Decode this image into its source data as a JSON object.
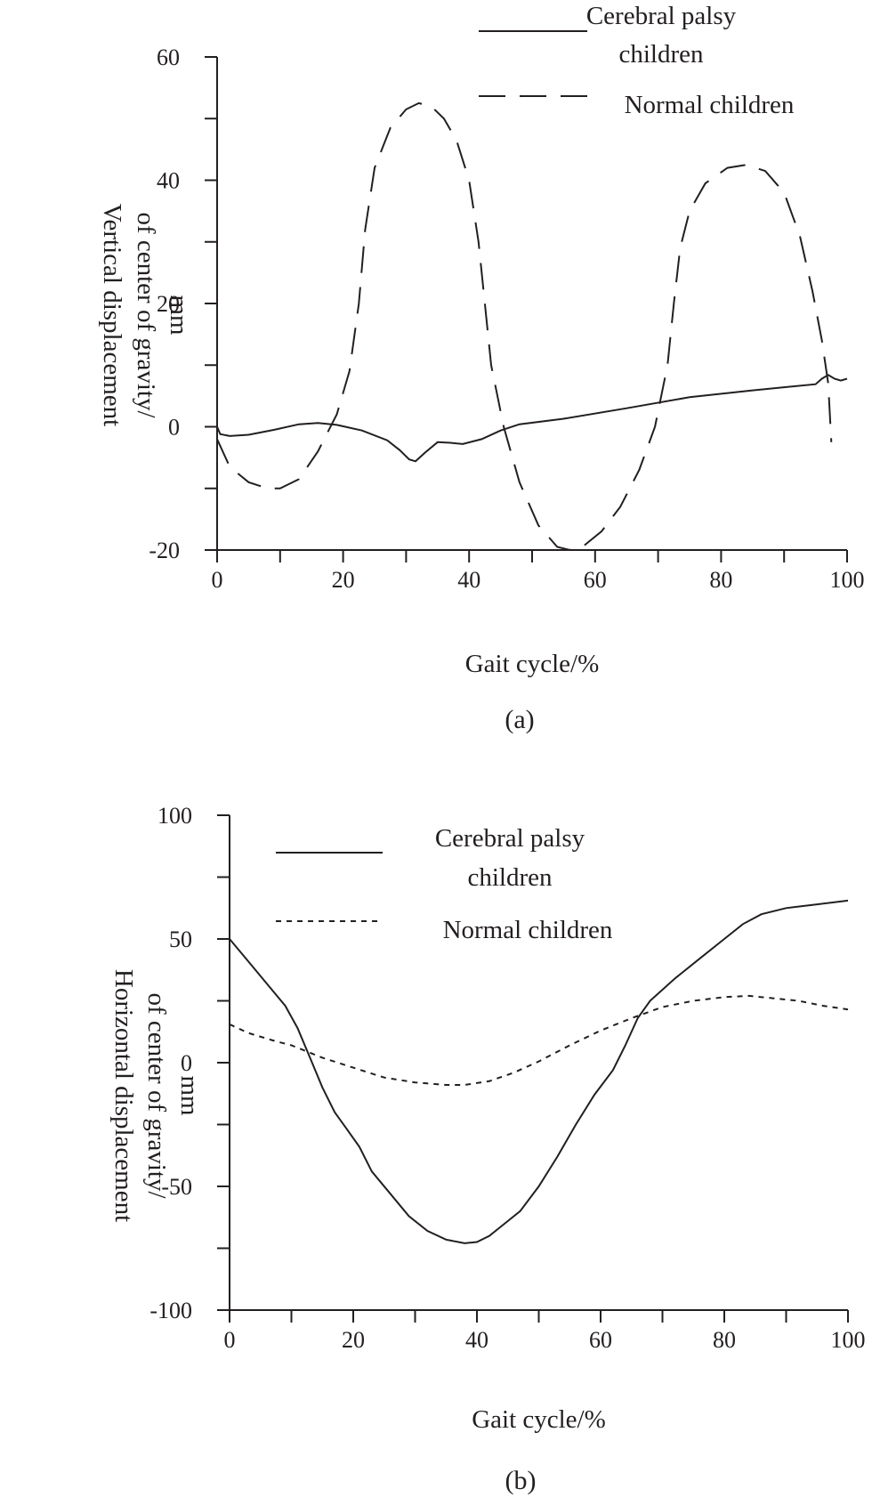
{
  "chart_data": [
    {
      "type": "line",
      "panel_label": "(a)",
      "xlabel": "Gait cycle/%",
      "ylabel_lines": [
        "Vertical displacement",
        "of center of gravity/",
        "mm"
      ],
      "xlim": [
        0,
        100
      ],
      "ylim": [
        -20,
        60
      ],
      "x_ticks": [
        0,
        20,
        40,
        60,
        80,
        100
      ],
      "y_ticks": [
        -20,
        0,
        20,
        40,
        60
      ],
      "x_tick_labels": [
        "0",
        "20",
        "40",
        "60",
        "80",
        "100"
      ],
      "y_tick_labels": [
        "-20",
        "0",
        "20",
        "40",
        "60"
      ],
      "legend_position": "top-right",
      "series": [
        {
          "name": "Cerebral palsy children",
          "legend_lines": [
            "Cerebral palsy",
            "children"
          ],
          "style": "solid",
          "points": [
            [
              0,
              0
            ],
            [
              0.5,
              -1.2
            ],
            [
              2,
              -1.5
            ],
            [
              5,
              -1.3
            ],
            [
              9,
              -0.5
            ],
            [
              13,
              0.4
            ],
            [
              16,
              0.6
            ],
            [
              19,
              0.3
            ],
            [
              23,
              -0.6
            ],
            [
              27,
              -2.2
            ],
            [
              29,
              -3.8
            ],
            [
              30.5,
              -5.3
            ],
            [
              31.5,
              -5.6
            ],
            [
              33,
              -4.2
            ],
            [
              35,
              -2.5
            ],
            [
              37,
              -2.6
            ],
            [
              39,
              -2.8
            ],
            [
              42,
              -2.0
            ],
            [
              45,
              -0.6
            ],
            [
              48,
              0.4
            ],
            [
              55,
              1.3
            ],
            [
              65,
              3.0
            ],
            [
              75,
              4.8
            ],
            [
              85,
              5.9
            ],
            [
              95,
              6.9
            ],
            [
              96,
              7.8
            ],
            [
              97,
              8.4
            ],
            [
              98,
              7.8
            ],
            [
              99,
              7.5
            ],
            [
              100,
              7.8
            ]
          ]
        },
        {
          "name": "Normal children",
          "legend_lines": [
            "Normal children"
          ],
          "style": "dashed",
          "points": [
            [
              0,
              -2
            ],
            [
              2,
              -6.5
            ],
            [
              5,
              -9
            ],
            [
              8,
              -10
            ],
            [
              10,
              -10
            ],
            [
              13,
              -8.5
            ],
            [
              16,
              -4
            ],
            [
              19,
              2
            ],
            [
              21,
              9
            ],
            [
              22.5,
              20
            ],
            [
              23.5,
              32
            ],
            [
              25,
              42
            ],
            [
              27.5,
              48.5
            ],
            [
              30,
              51.5
            ],
            [
              32,
              52.5
            ],
            [
              34,
              52
            ],
            [
              36,
              50
            ],
            [
              38,
              46.5
            ],
            [
              40,
              40
            ],
            [
              41.5,
              30
            ],
            [
              42.5,
              20
            ],
            [
              43.5,
              10
            ],
            [
              45.5,
              0
            ],
            [
              48,
              -9
            ],
            [
              51,
              -16
            ],
            [
              54,
              -19.5
            ],
            [
              56,
              -20
            ],
            [
              58,
              -19.5
            ],
            [
              61,
              -17
            ],
            [
              64,
              -13
            ],
            [
              67,
              -7
            ],
            [
              69.5,
              0
            ],
            [
              71.5,
              10
            ],
            [
              72.5,
              20
            ],
            [
              73.5,
              29
            ],
            [
              75,
              35
            ],
            [
              77.5,
              39.5
            ],
            [
              81,
              42
            ],
            [
              84,
              42.5
            ],
            [
              87,
              41.5
            ],
            [
              90,
              38
            ],
            [
              92.5,
              31
            ],
            [
              94.5,
              22
            ],
            [
              96,
              14
            ],
            [
              97,
              7
            ],
            [
              97.5,
              -2.5
            ]
          ]
        }
      ]
    },
    {
      "type": "line",
      "panel_label": "(b)",
      "xlabel": "Gait cycle/%",
      "ylabel_lines": [
        "Horizontal displacement",
        "of center of gravity/",
        "mm"
      ],
      "xlim": [
        0,
        100
      ],
      "ylim": [
        -100,
        100
      ],
      "x_ticks": [
        0,
        20,
        40,
        60,
        80,
        100
      ],
      "y_ticks": [
        -100,
        -50,
        0,
        50,
        100
      ],
      "x_tick_labels": [
        "0",
        "20",
        "40",
        "60",
        "80",
        "100"
      ],
      "y_tick_labels": [
        "-100",
        "-50",
        "0",
        "50",
        "100"
      ],
      "legend_position": "top-right",
      "series": [
        {
          "name": "Cerebral palsy children",
          "legend_lines": [
            "Cerebral palsy",
            "children"
          ],
          "style": "solid",
          "points": [
            [
              0,
              50
            ],
            [
              3,
              41
            ],
            [
              6,
              32
            ],
            [
              9,
              23
            ],
            [
              11,
              14
            ],
            [
              13,
              2
            ],
            [
              15,
              -10
            ],
            [
              17,
              -20
            ],
            [
              19,
              -27
            ],
            [
              21,
              -34
            ],
            [
              23,
              -44
            ],
            [
              26,
              -53
            ],
            [
              29,
              -62
            ],
            [
              32,
              -68
            ],
            [
              35,
              -71.5
            ],
            [
              38,
              -73
            ],
            [
              40,
              -72.5
            ],
            [
              42,
              -70
            ],
            [
              44,
              -66
            ],
            [
              47,
              -60
            ],
            [
              50,
              -50
            ],
            [
              53,
              -38
            ],
            [
              56,
              -25
            ],
            [
              59,
              -13
            ],
            [
              62,
              -3
            ],
            [
              64,
              7
            ],
            [
              66,
              18
            ],
            [
              68,
              25
            ],
            [
              72,
              34
            ],
            [
              76,
              42
            ],
            [
              80,
              50
            ],
            [
              83,
              56
            ],
            [
              86,
              60
            ],
            [
              90,
              62.5
            ],
            [
              95,
              64
            ],
            [
              100,
              65.5
            ]
          ]
        },
        {
          "name": "Normal children",
          "legend_lines": [
            "Normal children"
          ],
          "style": "dotted",
          "points": [
            [
              0,
              15.5
            ],
            [
              3,
              12
            ],
            [
              7,
              9
            ],
            [
              10,
              7
            ],
            [
              15,
              2
            ],
            [
              20,
              -2
            ],
            [
              25,
              -6
            ],
            [
              30,
              -8
            ],
            [
              35,
              -9
            ],
            [
              38,
              -9
            ],
            [
              42,
              -7.5
            ],
            [
              46,
              -4
            ],
            [
              50,
              0.5
            ],
            [
              55,
              7
            ],
            [
              60,
              13
            ],
            [
              65,
              18
            ],
            [
              70,
              22.5
            ],
            [
              75,
              25
            ],
            [
              80,
              26.5
            ],
            [
              84,
              27
            ],
            [
              88,
              26
            ],
            [
              92,
              25
            ],
            [
              96,
              23
            ],
            [
              100,
              21.5
            ]
          ]
        }
      ]
    }
  ]
}
